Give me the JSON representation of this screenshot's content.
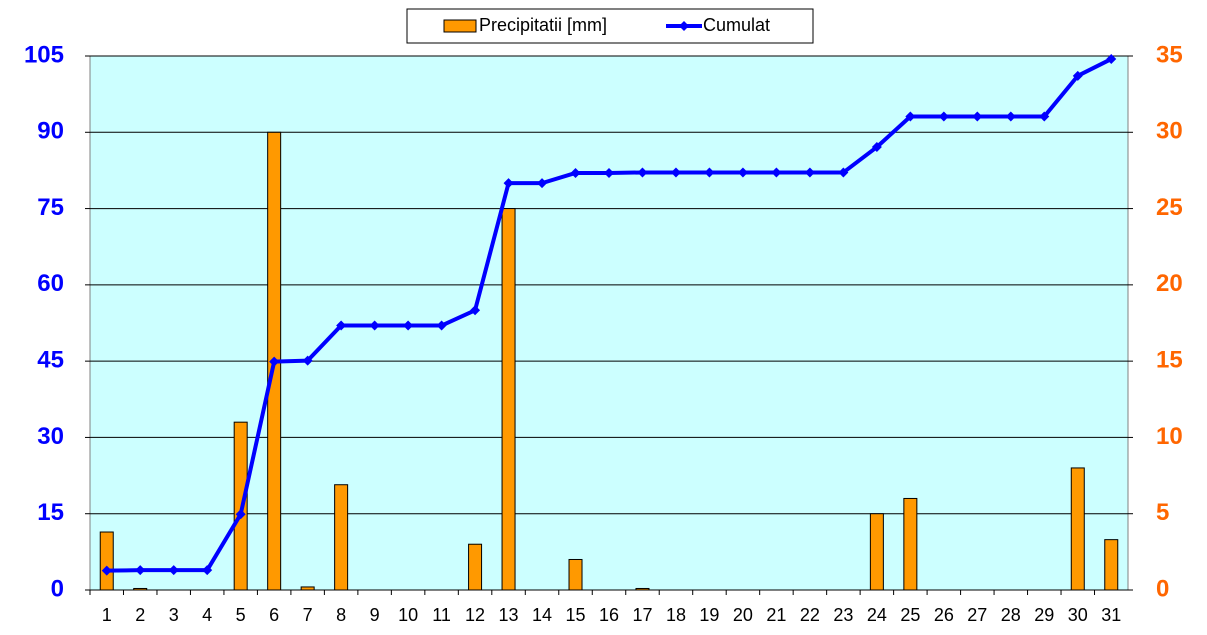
{
  "chart_data": {
    "type": "bar-line",
    "categories": [
      "1",
      "2",
      "3",
      "4",
      "5",
      "6",
      "7",
      "8",
      "9",
      "10",
      "11",
      "12",
      "13",
      "14",
      "15",
      "16",
      "17",
      "18",
      "19",
      "20",
      "21",
      "22",
      "23",
      "24",
      "25",
      "26",
      "27",
      "28",
      "29",
      "30",
      "31"
    ],
    "series": [
      {
        "name": "Precipitatii [mm]",
        "type": "bar",
        "axis": "y2",
        "color": "#ff9900",
        "values": [
          3.8,
          0.1,
          0,
          0,
          11,
          30,
          0.2,
          6.9,
          0,
          0,
          0,
          3,
          25,
          0,
          2,
          0,
          0.1,
          0,
          0,
          0,
          0,
          0,
          0,
          5,
          6,
          0,
          0,
          0,
          0,
          8,
          3.3
        ]
      },
      {
        "name": "Cumulat",
        "type": "line",
        "color": "#0000ff",
        "values": [
          3.8,
          3.9,
          3.9,
          3.9,
          14.9,
          44.9,
          45.1,
          52,
          52,
          52,
          52,
          55,
          80,
          80,
          82,
          82,
          82.1,
          82.1,
          82.1,
          82.1,
          82.1,
          82.1,
          82.1,
          87.1,
          93.1,
          93.1,
          93.1,
          93.1,
          93.1,
          101.1,
          104.4
        ]
      }
    ],
    "ylim": [
      0,
      105
    ],
    "yticks": [
      0,
      15,
      30,
      45,
      60,
      75,
      90,
      105
    ],
    "ycolor": "#0000ff",
    "y2lim": [
      0,
      35
    ],
    "y2ticks": [
      0,
      5,
      10,
      15,
      20,
      25,
      30,
      35
    ],
    "y2color": "#ff6600",
    "grid": true,
    "legend": "top",
    "background": "#ccffff"
  }
}
